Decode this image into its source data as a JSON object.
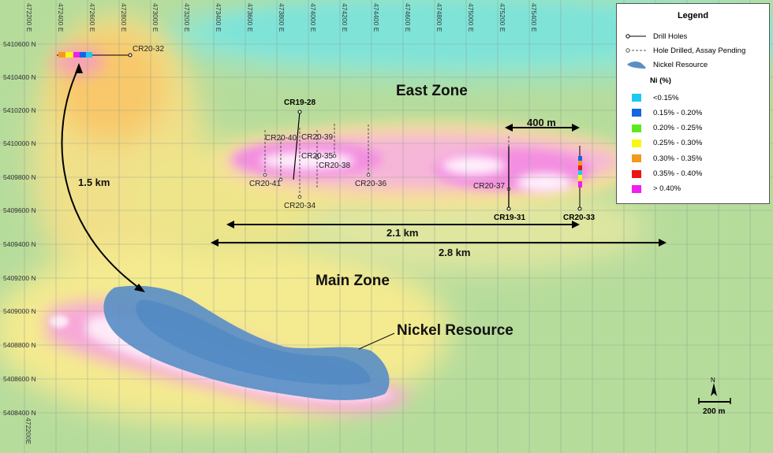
{
  "axis_labels": {
    "x": [
      "472200 E",
      "472400 E",
      "472600 E",
      "472800 E",
      "473000 E",
      "473200 E",
      "473400 E",
      "473600 E",
      "473800 E",
      "474000 E",
      "474200 E",
      "474400 E",
      "474600 E",
      "474800 E",
      "475000 E",
      "475200 E",
      "475400 E"
    ],
    "x_bottom": "472200E",
    "y": [
      "5410600 N",
      "5410400 N",
      "5410200 N",
      "5410000 N",
      "5409800 N",
      "5409600 N",
      "5409400 N",
      "5409200 N",
      "5409000 N",
      "5408800 N",
      "5408600 N",
      "5408400 N"
    ]
  },
  "zones": {
    "east": "East Zone",
    "main": "Main Zone",
    "nickel_resource": "Nickel Resource"
  },
  "measurements": {
    "dist_a": "1.5 km",
    "dist_b": "400 m",
    "dist_c": "2.1 km",
    "dist_d": "2.8 km"
  },
  "holes": [
    "CR20-32",
    "CR19-28",
    "CR20-40",
    "CR20-39",
    "CR20-35",
    "CR20-38",
    "CR20-41",
    "CR20-34",
    "CR20-36",
    "CR20-37",
    "CR19-31",
    "CR20-33"
  ],
  "legend": {
    "title": "Legend",
    "drill_holes": "Drill Holes",
    "assay_pending": "Hole Drilled, Assay Pending",
    "nickel_resource": "Nickel Resource",
    "ni_title": "Ni (%)",
    "ranges": [
      {
        "label": "<0.15%",
        "color": "#1ec8f0"
      },
      {
        "label": "0.15% - 0.20%",
        "color": "#1466e0"
      },
      {
        "label": "0.20% - 0.25%",
        "color": "#5cea1e"
      },
      {
        "label": "0.25% - 0.30%",
        "color": "#f8f816"
      },
      {
        "label": "0.30% - 0.35%",
        "color": "#f29a1a"
      },
      {
        "label": "0.35% - 0.40%",
        "color": "#ea1616"
      },
      {
        "label": "> 0.40%",
        "color": "#f01ef0"
      }
    ]
  },
  "north_arrow": "N",
  "scale_bar": "200 m",
  "colors": {
    "background_green": "#b9dfa0",
    "anomaly_yellow": "#fff296",
    "anomaly_pink": "#f7a8d8",
    "anomaly_magenta": "#f46fd6",
    "resource_blue": "#5f8fc4",
    "resource_cyan": "#86e6d6"
  }
}
